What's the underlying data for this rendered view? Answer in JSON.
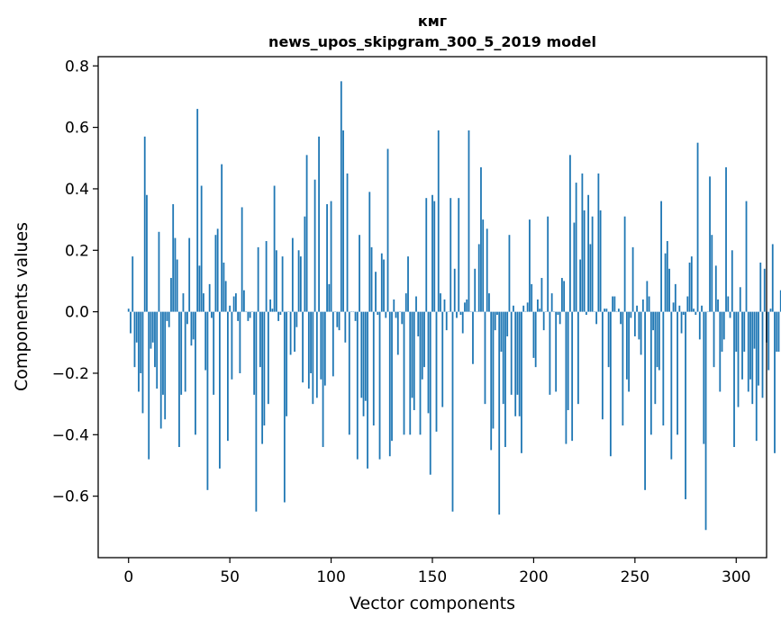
{
  "chart_data": {
    "type": "bar",
    "title": "кмг",
    "subtitle": "news_upos_skipgram_300_5_2019 model",
    "xlabel": "Vector components",
    "ylabel": "Components values",
    "xlim": [
      -15,
      315
    ],
    "ylim": [
      -0.8,
      0.83
    ],
    "xticks": [
      0,
      50,
      100,
      150,
      200,
      250,
      300
    ],
    "yticks": [
      -0.6,
      -0.4,
      -0.2,
      0.0,
      0.2,
      0.4,
      0.6,
      0.8
    ],
    "xtick_labels": [
      "0",
      "50",
      "100",
      "150",
      "200",
      "250",
      "300"
    ],
    "ytick_labels": [
      "−0.6",
      "−0.4",
      "−0.2",
      "0.0",
      "0.2",
      "0.4",
      "0.6",
      "0.8"
    ],
    "bar_color": "#1f77b4",
    "grid": false,
    "values": [
      0.01,
      -0.07,
      0.18,
      -0.18,
      -0.1,
      -0.26,
      -0.2,
      -0.33,
      0.57,
      0.38,
      -0.48,
      -0.12,
      -0.1,
      -0.18,
      -0.25,
      0.26,
      -0.38,
      -0.27,
      -0.35,
      -0.03,
      -0.05,
      0.11,
      0.35,
      0.24,
      0.17,
      -0.44,
      -0.27,
      0.06,
      -0.26,
      -0.04,
      0.24,
      -0.11,
      -0.09,
      -0.4,
      0.66,
      0.15,
      0.41,
      0.06,
      -0.19,
      -0.58,
      0.09,
      -0.02,
      -0.27,
      0.25,
      0.27,
      -0.51,
      0.48,
      0.16,
      0.1,
      -0.42,
      0.02,
      -0.22,
      0.05,
      0.06,
      -0.03,
      -0.2,
      0.34,
      0.07,
      0.0,
      -0.03,
      -0.02,
      0.0,
      -0.27,
      -0.65,
      0.21,
      -0.18,
      -0.43,
      -0.37,
      0.23,
      -0.3,
      0.04,
      0.01,
      0.41,
      0.2,
      -0.03,
      -0.01,
      0.18,
      -0.62,
      -0.34,
      0.0,
      -0.14,
      0.24,
      -0.13,
      -0.05,
      0.2,
      0.18,
      -0.23,
      0.31,
      0.51,
      -0.25,
      -0.2,
      -0.3,
      0.43,
      -0.28,
      0.57,
      -0.22,
      -0.44,
      -0.24,
      0.35,
      0.09,
      0.36,
      -0.21,
      0.0,
      -0.05,
      -0.06,
      0.75,
      0.59,
      -0.1,
      0.45,
      -0.4,
      0.0,
      0.0,
      -0.03,
      -0.48,
      0.25,
      -0.28,
      -0.34,
      -0.29,
      -0.51,
      0.39,
      0.21,
      -0.37,
      0.13,
      -0.01,
      -0.48,
      0.19,
      0.17,
      -0.02,
      0.53,
      -0.47,
      -0.42,
      0.04,
      -0.02,
      -0.14,
      0.0,
      -0.04,
      -0.4,
      0.06,
      0.18,
      -0.4,
      -0.28,
      -0.32,
      0.05,
      -0.08,
      -0.4,
      -0.22,
      -0.18,
      0.37,
      -0.33,
      -0.53,
      0.38,
      0.36,
      -0.39,
      0.59,
      0.06,
      -0.31,
      0.04,
      -0.06,
      0.0,
      0.37,
      -0.65,
      0.14,
      -0.02,
      0.37,
      -0.01,
      -0.07,
      0.03,
      0.04,
      0.59,
      0.0,
      -0.17,
      0.14,
      0.0,
      0.22,
      0.47,
      0.3,
      -0.3,
      0.27,
      0.06,
      -0.45,
      -0.38,
      -0.06,
      -0.01,
      -0.66,
      -0.13,
      -0.3,
      -0.44,
      -0.08,
      0.25,
      -0.27,
      0.02,
      -0.34,
      -0.27,
      -0.34,
      -0.46,
      0.02,
      0.0,
      0.03,
      0.3,
      0.09,
      -0.15,
      -0.18,
      0.04,
      0.01,
      0.11,
      -0.06,
      0.0,
      0.31,
      -0.27,
      0.06,
      0.0,
      -0.26,
      -0.01,
      -0.04,
      0.11,
      0.1,
      -0.43,
      -0.32,
      0.51,
      -0.42,
      0.29,
      0.42,
      -0.3,
      0.17,
      0.45,
      0.33,
      -0.01,
      0.38,
      0.22,
      0.31,
      0.0,
      -0.04,
      0.45,
      0.33,
      -0.35,
      0.01,
      0.01,
      -0.18,
      -0.47,
      0.05,
      0.05,
      0.0,
      0.01,
      -0.04,
      -0.37,
      0.31,
      -0.22,
      -0.26,
      -0.02,
      0.21,
      -0.08,
      0.02,
      -0.09,
      -0.14,
      0.04,
      -0.58,
      0.1,
      0.05,
      -0.4,
      -0.06,
      -0.3,
      -0.18,
      -0.19,
      0.36,
      -0.37,
      0.19,
      0.23,
      0.14,
      -0.48,
      0.03,
      0.09,
      -0.4,
      0.02,
      -0.07,
      -0.01,
      -0.61,
      0.05,
      0.16,
      0.18,
      0.01,
      -0.01,
      0.55,
      -0.09,
      0.02,
      -0.43,
      -0.71,
      0.0,
      0.44,
      0.25,
      -0.18,
      0.15,
      0.04,
      -0.26,
      -0.13,
      -0.09,
      0.47,
      0.05,
      -0.02,
      0.2,
      -0.44,
      -0.13,
      -0.31,
      0.08,
      -0.22,
      -0.13,
      0.36,
      -0.26,
      -0.22,
      -0.3,
      -0.12,
      -0.42,
      -0.24,
      0.16,
      -0.28,
      0.14,
      -0.1,
      -0.19,
      0.01,
      0.22,
      -0.46,
      -0.13,
      -0.13,
      0.07
    ]
  }
}
